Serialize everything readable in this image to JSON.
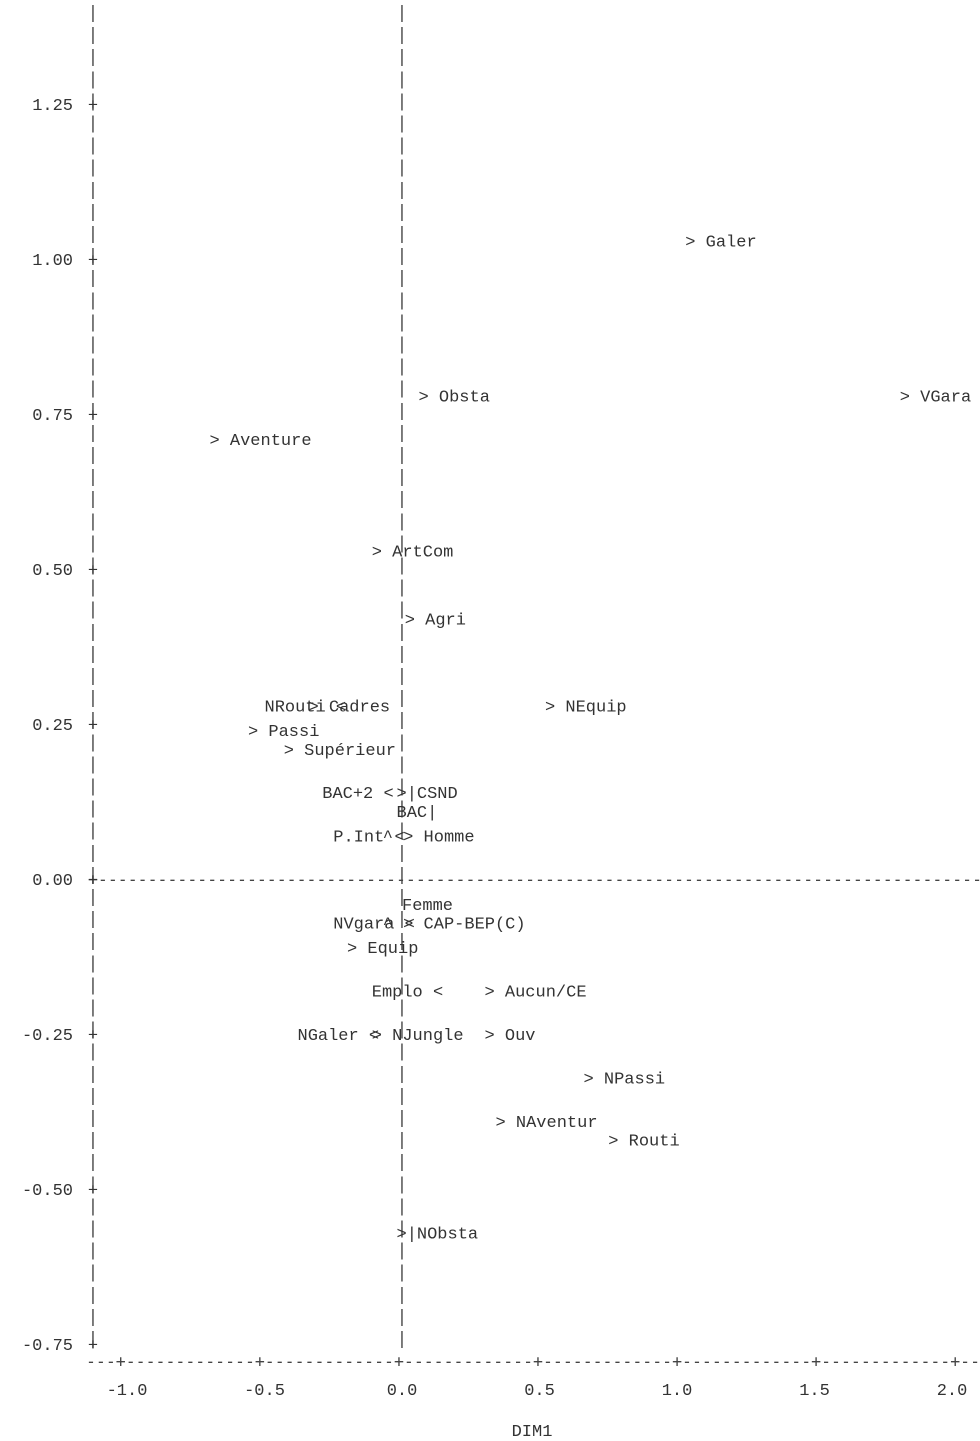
{
  "chart_data": {
    "type": "scatter",
    "title": "",
    "xlabel": "DIM1",
    "ylabel": "",
    "xlim": [
      -1.1,
      2.1
    ],
    "ylim": [
      -0.8,
      1.4
    ],
    "xticks": [
      "-1.0",
      "-0.5",
      "0.0",
      "0.5",
      "1.0",
      "1.5",
      "2.0"
    ],
    "yticks": [
      "1.25",
      "1.00",
      "0.75",
      "0.50",
      "0.25",
      "0.00",
      "-0.25",
      "-0.50",
      "-0.75"
    ],
    "grid": false,
    "points": [
      {
        "label": "Galer",
        "x": 1.03,
        "y": 1.03,
        "marker": ">",
        "text": "> Galer"
      },
      {
        "label": "Obsta",
        "x": 0.06,
        "y": 0.78,
        "marker": ">",
        "text": "> Obsta"
      },
      {
        "label": "VGara",
        "x": 1.81,
        "y": 0.78,
        "marker": ">",
        "text": "> VGara"
      },
      {
        "label": "Aventure",
        "x": -0.7,
        "y": 0.71,
        "marker": ">",
        "text": "> Aventure"
      },
      {
        "label": "ArtCom",
        "x": -0.11,
        "y": 0.53,
        "marker": ">",
        "text": "> ArtCom"
      },
      {
        "label": "Agri",
        "x": 0.01,
        "y": 0.42,
        "marker": ">",
        "text": "> Agri"
      },
      {
        "label": "NRouti",
        "x": -0.5,
        "y": 0.28,
        "marker": "<",
        "text": "NRouti <"
      },
      {
        "label": "Cadres",
        "x": -0.34,
        "y": 0.28,
        "marker": ">",
        "text": "> Cadres"
      },
      {
        "label": "NEquip",
        "x": 0.52,
        "y": 0.28,
        "marker": ">",
        "text": "> NEquip"
      },
      {
        "label": "Passi",
        "x": -0.56,
        "y": 0.24,
        "marker": ">",
        "text": "> Passi"
      },
      {
        "label": "Supérieur",
        "x": -0.43,
        "y": 0.21,
        "marker": ">",
        "text": "> Supérieur"
      },
      {
        "label": "BAC+2",
        "x": -0.29,
        "y": 0.14,
        "marker": "<",
        "text": "BAC+2 <"
      },
      {
        "label": "CSND",
        "x": -0.02,
        "y": 0.14,
        "marker": ">",
        "text": ">|CSND"
      },
      {
        "label": "BAC",
        "x": -0.02,
        "y": 0.11,
        "marker": "",
        "text": "BAC|"
      },
      {
        "label": "P.Int",
        "x": -0.25,
        "y": 0.07,
        "marker": "<",
        "text": "P.Int <"
      },
      {
        "label": "Homme",
        "x": -0.07,
        "y": 0.07,
        "marker": "^",
        "text": "^ > Homme"
      },
      {
        "label": "Femme",
        "x": 0.0,
        "y": -0.04,
        "marker": "",
        "text": "Femme"
      },
      {
        "label": "NVgara",
        "x": -0.25,
        "y": -0.07,
        "marker": "<",
        "text": "NVgara <"
      },
      {
        "label": "CAP-BEP(C)",
        "x": -0.07,
        "y": -0.07,
        "marker": "^",
        "text": "^ > CAP-BEP(C)"
      },
      {
        "label": "Equip",
        "x": -0.2,
        "y": -0.11,
        "marker": ">",
        "text": "> Equip"
      },
      {
        "label": "Emplo",
        "x": -0.11,
        "y": -0.18,
        "marker": "<",
        "text": "Emplo <"
      },
      {
        "label": "Aucun/CE",
        "x": 0.3,
        "y": -0.18,
        "marker": ">",
        "text": "> Aucun/CE"
      },
      {
        "label": "NGaler",
        "x": -0.38,
        "y": -0.25,
        "marker": "<",
        "text": "NGaler <"
      },
      {
        "label": "NJungle",
        "x": -0.11,
        "y": -0.25,
        "marker": ">",
        "text": "> NJungle"
      },
      {
        "label": "Ouv",
        "x": 0.3,
        "y": -0.25,
        "marker": ">",
        "text": "> Ouv"
      },
      {
        "label": "NPassi",
        "x": 0.66,
        "y": -0.32,
        "marker": ">",
        "text": "> NPassi"
      },
      {
        "label": "NAventur",
        "x": 0.34,
        "y": -0.39,
        "marker": ">",
        "text": "> NAventur"
      },
      {
        "label": "Routi",
        "x": 0.75,
        "y": -0.42,
        "marker": ">",
        "text": "> Routi"
      },
      {
        "label": "NObsta",
        "x": -0.02,
        "y": -0.57,
        "marker": ">",
        "text": ">|NObsta"
      }
    ]
  }
}
